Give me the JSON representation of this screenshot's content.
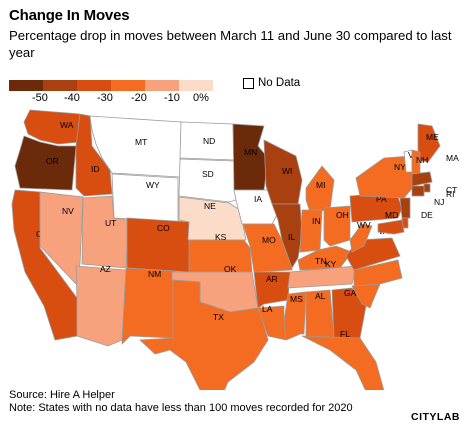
{
  "header": {
    "title": "Change In Moves",
    "subtitle": "Percentage drop in moves between March 11 and June 30 compared to last year"
  },
  "legend": {
    "ticks": [
      "-50",
      "-40",
      "-30",
      "-20",
      "-10",
      "0%"
    ],
    "colors": [
      "#6b2a0a",
      "#a8400f",
      "#d84d10",
      "#f36c22",
      "#f7a27c",
      "#fbdcc9"
    ],
    "no_data_label": "No Data",
    "no_data_color": "#ffffff"
  },
  "states": [
    {
      "code": "WA",
      "label": "WA",
      "value": -30
    },
    {
      "code": "OR",
      "label": "OR",
      "value": -50
    },
    {
      "code": "CA",
      "label": "CA",
      "value": -30
    },
    {
      "code": "NV",
      "label": "NV",
      "value": -10
    },
    {
      "code": "ID",
      "label": "ID",
      "value": -30
    },
    {
      "code": "MT",
      "label": "MT",
      "value": null
    },
    {
      "code": "WY",
      "label": "WY",
      "value": null
    },
    {
      "code": "UT",
      "label": "UT",
      "value": -10
    },
    {
      "code": "AZ",
      "label": "AZ",
      "value": -10
    },
    {
      "code": "CO",
      "label": "CO",
      "value": -30
    },
    {
      "code": "NM",
      "label": "NM",
      "value": -20
    },
    {
      "code": "ND",
      "label": "ND",
      "value": null
    },
    {
      "code": "SD",
      "label": "SD",
      "value": null
    },
    {
      "code": "NE",
      "label": "NE",
      "value": 0
    },
    {
      "code": "KS",
      "label": "KS",
      "value": -20
    },
    {
      "code": "OK",
      "label": "OK",
      "value": -10
    },
    {
      "code": "TX",
      "label": "TX",
      "value": -20
    },
    {
      "code": "MN",
      "label": "MN",
      "value": -50
    },
    {
      "code": "IA",
      "label": "IA",
      "value": null
    },
    {
      "code": "MO",
      "label": "MO",
      "value": -20
    },
    {
      "code": "AR",
      "label": "AR",
      "value": -30
    },
    {
      "code": "LA",
      "label": "LA",
      "value": -20
    },
    {
      "code": "WI",
      "label": "WI",
      "value": -40
    },
    {
      "code": "IL",
      "label": "IL",
      "value": -40
    },
    {
      "code": "MS",
      "label": "MS",
      "value": -20
    },
    {
      "code": "MI",
      "label": "MI",
      "value": -20
    },
    {
      "code": "IN",
      "label": "IN",
      "value": -20
    },
    {
      "code": "OH",
      "label": "OH",
      "value": -20
    },
    {
      "code": "KY",
      "label": "KY",
      "value": -20
    },
    {
      "code": "TN",
      "label": "TN",
      "value": -10
    },
    {
      "code": "AL",
      "label": "AL",
      "value": -20
    },
    {
      "code": "GA",
      "label": "GA",
      "value": -30
    },
    {
      "code": "FL",
      "label": "FL",
      "value": -20
    },
    {
      "code": "SC",
      "label": "SC",
      "value": -20
    },
    {
      "code": "NC",
      "label": "NC",
      "value": -20
    },
    {
      "code": "VA",
      "label": "VA",
      "value": -30
    },
    {
      "code": "WV",
      "label": "WV",
      "value": -20
    },
    {
      "code": "PA",
      "label": "PA",
      "value": -30
    },
    {
      "code": "NY",
      "label": "NY",
      "value": -20
    },
    {
      "code": "ME",
      "label": "ME",
      "value": -30
    },
    {
      "code": "VT",
      "label": "VT",
      "value": null
    },
    {
      "code": "NH",
      "label": "NH",
      "value": -20
    },
    {
      "code": "MA",
      "label": "MA",
      "value": -40
    },
    {
      "code": "RI",
      "label": "RI",
      "value": -40
    },
    {
      "code": "CT",
      "label": "CT",
      "value": -40
    },
    {
      "code": "NJ",
      "label": "NJ",
      "value": -40
    },
    {
      "code": "DE",
      "label": "DE",
      "value": -30
    },
    {
      "code": "MD",
      "label": "MD",
      "value": -30
    }
  ],
  "footer": {
    "source": "Source: Hire A Helper",
    "note": "Note: States with no data have less than 100 moves recorded for 2020"
  },
  "brand": {
    "logo": "CITYLAB"
  }
}
